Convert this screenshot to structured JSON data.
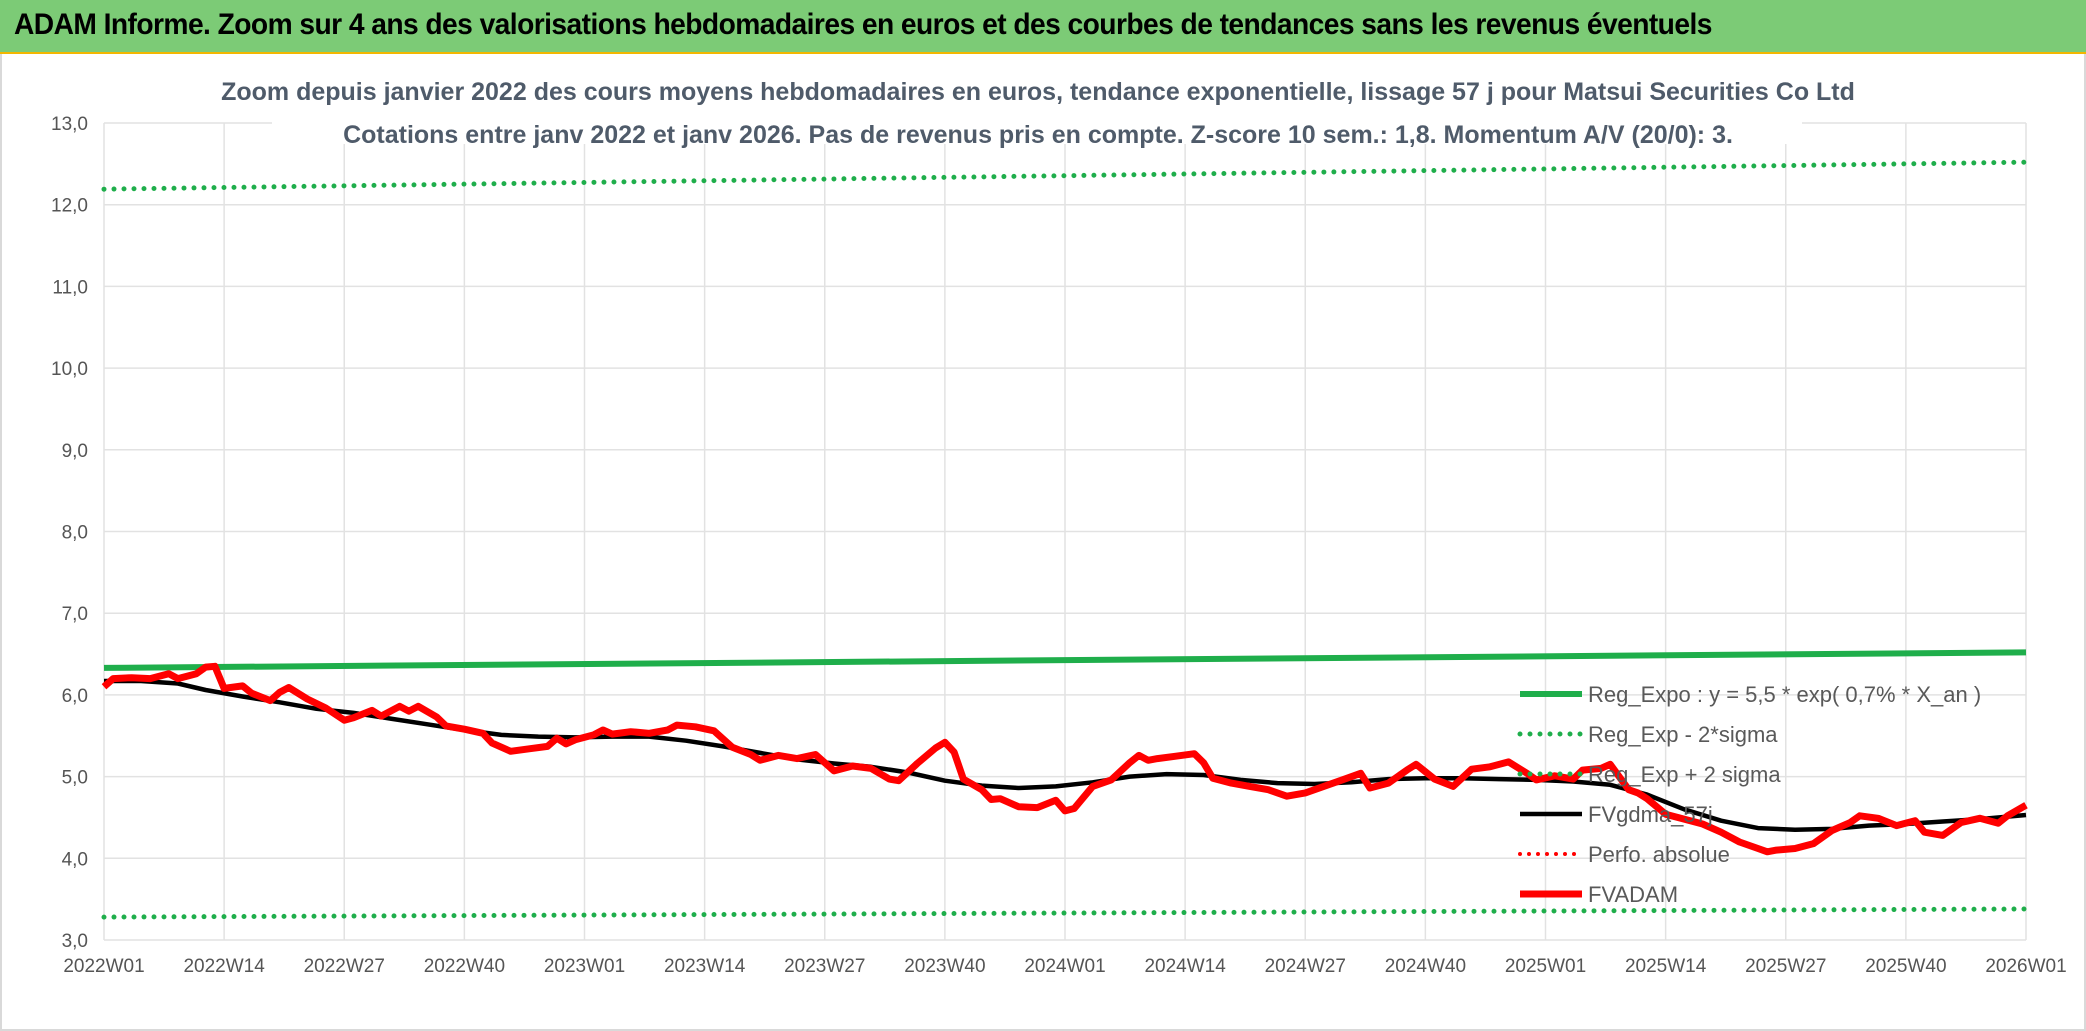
{
  "header": {
    "title": "ADAM Informe. Zoom sur 4 ans des valorisations hebdomadaires en euros et des courbes de tendances sans les revenus éventuels"
  },
  "colors": {
    "header_bg": "#7ccb76",
    "header_border": "#f2b600",
    "green_series": "#1fae4b",
    "red_series": "#ff0000",
    "black_series": "#000000",
    "grid": "#e2e2e2"
  },
  "chart_data": {
    "type": "line",
    "title": "Zoom depuis janvier 2022 des cours moyens hebdomadaires en euros, tendance exponentielle, lissage 57 j pour Matsui Securities Co Ltd",
    "subtitle": "Cotations entre janv 2022 et janv 2026. Pas de revenus pris en compte. Z-score 10 sem.: 1,8. Momentum A/V (20/0): 3.",
    "x_range": [
      "2022W01",
      "2026W01"
    ],
    "x_ticks": [
      "2022W01",
      "2022W14",
      "2022W27",
      "2022W40",
      "2023W01",
      "2023W14",
      "2023W27",
      "2023W40",
      "2024W01",
      "2024W14",
      "2024W27",
      "2024W40",
      "2025W01",
      "2025W14",
      "2025W27",
      "2025W40",
      "2026W01"
    ],
    "ylim": [
      3.0,
      13.0
    ],
    "y_ticks": [
      "3,0",
      "4,0",
      "5,0",
      "6,0",
      "7,0",
      "8,0",
      "9,0",
      "10,0",
      "11,0",
      "12,0",
      "13,0"
    ],
    "grid": true,
    "legend_position": "right",
    "series": [
      {
        "name": "Reg_Expo : y = 5,5 * exp( 0,7% *  X_an )",
        "style": "solid-green",
        "points": [
          [
            "2022W01",
            6.33
          ],
          [
            "2026W01",
            6.52
          ]
        ]
      },
      {
        "name": "Reg_Exp - 2*sigma",
        "style": "dotted-green",
        "points": [
          [
            "2022W01",
            3.28
          ],
          [
            "2026W01",
            3.38
          ]
        ]
      },
      {
        "name": "Reg_Exp + 2 sigma",
        "style": "dotted-green",
        "points": [
          [
            "2022W01",
            12.19
          ],
          [
            "2026W01",
            12.52
          ]
        ]
      },
      {
        "name": "FVgdma_57j",
        "style": "solid-black",
        "points": [
          [
            "2022W01",
            6.17
          ],
          [
            "2022W05",
            6.17
          ],
          [
            "2022W09",
            6.14
          ],
          [
            "2022W12",
            6.06
          ],
          [
            "2022W16",
            5.98
          ],
          [
            "2022W20",
            5.91
          ],
          [
            "2022W24",
            5.83
          ],
          [
            "2022W28",
            5.78
          ],
          [
            "2022W32",
            5.71
          ],
          [
            "2022W36",
            5.64
          ],
          [
            "2022W40",
            5.57
          ],
          [
            "2022W44",
            5.51
          ],
          [
            "2022W48",
            5.49
          ],
          [
            "2022W52",
            5.48
          ],
          [
            "2023W04",
            5.49
          ],
          [
            "2023W08",
            5.49
          ],
          [
            "2023W12",
            5.44
          ],
          [
            "2023W16",
            5.37
          ],
          [
            "2023W20",
            5.29
          ],
          [
            "2023W24",
            5.21
          ],
          [
            "2023W28",
            5.16
          ],
          [
            "2023W32",
            5.12
          ],
          [
            "2023W36",
            5.05
          ],
          [
            "2023W40",
            4.95
          ],
          [
            "2023W44",
            4.89
          ],
          [
            "2023W48",
            4.86
          ],
          [
            "2023W52",
            4.88
          ],
          [
            "2024W04",
            4.93
          ],
          [
            "2024W08",
            5.0
          ],
          [
            "2024W12",
            5.03
          ],
          [
            "2024W16",
            5.02
          ],
          [
            "2024W20",
            4.96
          ],
          [
            "2024W24",
            4.92
          ],
          [
            "2024W28",
            4.91
          ],
          [
            "2024W32",
            4.93
          ],
          [
            "2024W36",
            4.97
          ],
          [
            "2024W40",
            4.98
          ],
          [
            "2024W44",
            4.98
          ],
          [
            "2024W48",
            4.97
          ],
          [
            "2024W52",
            4.96
          ],
          [
            "2025W04",
            4.94
          ],
          [
            "2025W08",
            4.9
          ],
          [
            "2025W12",
            4.78
          ],
          [
            "2025W16",
            4.6
          ],
          [
            "2025W20",
            4.46
          ],
          [
            "2025W24",
            4.37
          ],
          [
            "2025W28",
            4.35
          ],
          [
            "2025W32",
            4.36
          ],
          [
            "2025W36",
            4.4
          ],
          [
            "2025W40",
            4.42
          ],
          [
            "2025W44",
            4.45
          ],
          [
            "2025W48",
            4.48
          ],
          [
            "2026W01",
            4.53
          ]
        ]
      },
      {
        "name": "Perfo. absolue",
        "style": "dotted-red",
        "points": []
      },
      {
        "name": "FVADAM",
        "style": "solid-red",
        "points": [
          [
            "2022W01",
            6.1
          ],
          [
            "2022W02",
            6.2
          ],
          [
            "2022W04",
            6.21
          ],
          [
            "2022W06",
            6.2
          ],
          [
            "2022W08",
            6.26
          ],
          [
            "2022W09",
            6.2
          ],
          [
            "2022W11",
            6.26
          ],
          [
            "2022W12",
            6.34
          ],
          [
            "2022W13",
            6.35
          ],
          [
            "2022W14",
            6.08
          ],
          [
            "2022W16",
            6.11
          ],
          [
            "2022W17",
            6.02
          ],
          [
            "2022W19",
            5.93
          ],
          [
            "2022W20",
            6.03
          ],
          [
            "2022W21",
            6.09
          ],
          [
            "2022W23",
            5.95
          ],
          [
            "2022W25",
            5.84
          ],
          [
            "2022W27",
            5.69
          ],
          [
            "2022W28",
            5.72
          ],
          [
            "2022W30",
            5.81
          ],
          [
            "2022W31",
            5.74
          ],
          [
            "2022W33",
            5.86
          ],
          [
            "2022W34",
            5.8
          ],
          [
            "2022W35",
            5.86
          ],
          [
            "2022W37",
            5.73
          ],
          [
            "2022W38",
            5.62
          ],
          [
            "2022W40",
            5.58
          ],
          [
            "2022W42",
            5.53
          ],
          [
            "2022W43",
            5.41
          ],
          [
            "2022W45",
            5.31
          ],
          [
            "2022W47",
            5.34
          ],
          [
            "2022W49",
            5.37
          ],
          [
            "2022W50",
            5.47
          ],
          [
            "2022W51",
            5.4
          ],
          [
            "2022W52",
            5.45
          ],
          [
            "2023W02",
            5.51
          ],
          [
            "2023W03",
            5.57
          ],
          [
            "2023W04",
            5.52
          ],
          [
            "2023W06",
            5.55
          ],
          [
            "2023W08",
            5.53
          ],
          [
            "2023W10",
            5.57
          ],
          [
            "2023W11",
            5.63
          ],
          [
            "2023W13",
            5.61
          ],
          [
            "2023W15",
            5.56
          ],
          [
            "2023W17",
            5.36
          ],
          [
            "2023W19",
            5.27
          ],
          [
            "2023W20",
            5.2
          ],
          [
            "2023W22",
            5.26
          ],
          [
            "2023W24",
            5.22
          ],
          [
            "2023W26",
            5.27
          ],
          [
            "2023W28",
            5.07
          ],
          [
            "2023W30",
            5.13
          ],
          [
            "2023W32",
            5.1
          ],
          [
            "2023W34",
            4.97
          ],
          [
            "2023W35",
            4.95
          ],
          [
            "2023W37",
            5.16
          ],
          [
            "2023W39",
            5.35
          ],
          [
            "2023W40",
            5.42
          ],
          [
            "2023W41",
            5.3
          ],
          [
            "2023W42",
            4.97
          ],
          [
            "2023W44",
            4.84
          ],
          [
            "2023W45",
            4.72
          ],
          [
            "2023W46",
            4.73
          ],
          [
            "2023W48",
            4.63
          ],
          [
            "2023W50",
            4.62
          ],
          [
            "2023W52",
            4.71
          ],
          [
            "2024W01",
            4.58
          ],
          [
            "2024W02",
            4.61
          ],
          [
            "2024W04",
            4.88
          ],
          [
            "2024W06",
            4.96
          ],
          [
            "2024W08",
            5.17
          ],
          [
            "2024W09",
            5.26
          ],
          [
            "2024W10",
            5.2
          ],
          [
            "2024W11",
            5.22
          ],
          [
            "2024W13",
            5.25
          ],
          [
            "2024W15",
            5.28
          ],
          [
            "2024W16",
            5.17
          ],
          [
            "2024W17",
            4.98
          ],
          [
            "2024W19",
            4.92
          ],
          [
            "2024W21",
            4.88
          ],
          [
            "2024W23",
            4.84
          ],
          [
            "2024W25",
            4.76
          ],
          [
            "2024W27",
            4.8
          ],
          [
            "2024W29",
            4.88
          ],
          [
            "2024W31",
            4.96
          ],
          [
            "2024W33",
            5.04
          ],
          [
            "2024W34",
            4.86
          ],
          [
            "2024W36",
            4.92
          ],
          [
            "2024W38",
            5.08
          ],
          [
            "2024W39",
            5.15
          ],
          [
            "2024W41",
            4.97
          ],
          [
            "2024W43",
            4.88
          ],
          [
            "2024W45",
            5.09
          ],
          [
            "2024W47",
            5.12
          ],
          [
            "2024W49",
            5.18
          ],
          [
            "2024W51",
            5.04
          ],
          [
            "2024W52",
            4.96
          ],
          [
            "2025W02",
            5.01
          ],
          [
            "2025W04",
            4.97
          ],
          [
            "2025W05",
            5.08
          ],
          [
            "2025W07",
            5.1
          ],
          [
            "2025W08",
            5.15
          ],
          [
            "2025W10",
            4.84
          ],
          [
            "2025W11",
            4.8
          ],
          [
            "2025W12",
            4.73
          ],
          [
            "2025W14",
            4.54
          ],
          [
            "2025W16",
            4.48
          ],
          [
            "2025W18",
            4.42
          ],
          [
            "2025W20",
            4.32
          ],
          [
            "2025W22",
            4.2
          ],
          [
            "2025W24",
            4.12
          ],
          [
            "2025W25",
            4.08
          ],
          [
            "2025W26",
            4.1
          ],
          [
            "2025W28",
            4.12
          ],
          [
            "2025W30",
            4.18
          ],
          [
            "2025W32",
            4.34
          ],
          [
            "2025W34",
            4.44
          ],
          [
            "2025W35",
            4.52
          ],
          [
            "2025W37",
            4.49
          ],
          [
            "2025W39",
            4.4
          ],
          [
            "2025W41",
            4.46
          ],
          [
            "2025W42",
            4.32
          ],
          [
            "2025W44",
            4.28
          ],
          [
            "2025W46",
            4.44
          ],
          [
            "2025W48",
            4.49
          ],
          [
            "2025W50",
            4.43
          ],
          [
            "2025W51",
            4.52
          ],
          [
            "2026W01",
            4.65
          ]
        ]
      }
    ]
  }
}
